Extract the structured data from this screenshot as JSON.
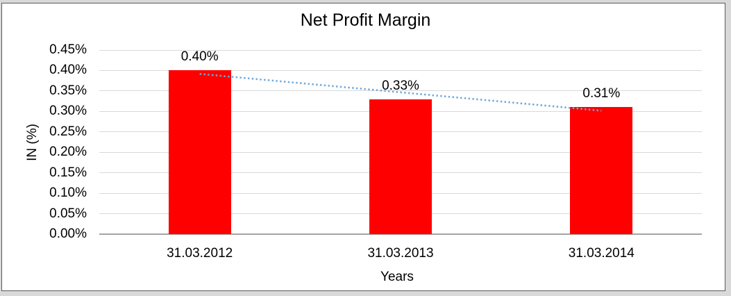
{
  "window": {
    "outer_background": "#d9d9d9",
    "frame_border_color": "#5a5a5a",
    "canvas_color": "#ffffff"
  },
  "chart_data": {
    "type": "bar",
    "title": "Net Profit Margin",
    "xlabel": "Years",
    "ylabel": "IN (%)",
    "categories": [
      "31.03.2012",
      "31.03.2013",
      "31.03.2014"
    ],
    "values": [
      0.4,
      0.33,
      0.31
    ],
    "data_labels": [
      "0.40%",
      "0.33%",
      "0.31%"
    ],
    "unit": "%",
    "ylim": [
      0,
      0.45
    ],
    "ytick_step": 0.05,
    "ytick_labels": [
      "0.00%",
      "0.05%",
      "0.10%",
      "0.15%",
      "0.20%",
      "0.25%",
      "0.30%",
      "0.35%",
      "0.40%",
      "0.45%"
    ],
    "grid": true,
    "legend": "none",
    "bar_color": "#ff0000",
    "gridline_color": "#d9d9d9",
    "axisline_color": "#a3a3a3",
    "trendline": {
      "type": "linear",
      "style": "dotted",
      "color": "#6fa8dc"
    }
  }
}
